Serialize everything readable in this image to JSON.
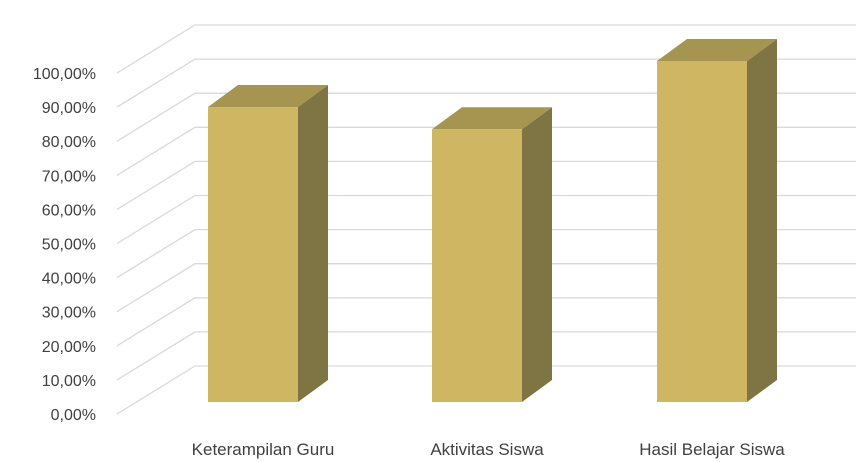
{
  "chart_data": {
    "type": "bar",
    "categories": [
      "Keterampilan Guru",
      "Aktivitas Siswa",
      "Hasil Belajar Siswa"
    ],
    "series": [
      {
        "values": [
          86.5,
          80,
          100
        ]
      }
    ],
    "y_tick_labels": [
      "0,00%",
      "10,00%",
      "20,00%",
      "30,00%",
      "40,00%",
      "50,00%",
      "60,00%",
      "70,00%",
      "80,00%",
      "90,00%",
      "100,00%"
    ],
    "ylim": [
      0,
      100
    ],
    "y_step": 10,
    "grid": true,
    "legend": "none",
    "style": "3d-column",
    "colors": {
      "front": "#cfb662",
      "side": "#7f7443",
      "top": "#a59550",
      "grid": "#d9d9d9",
      "text": "#404040"
    }
  }
}
